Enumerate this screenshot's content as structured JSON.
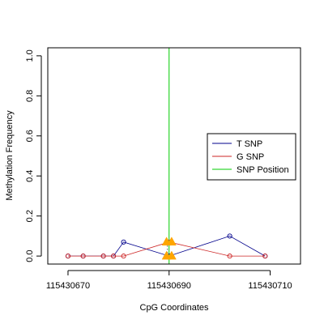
{
  "chart_data": {
    "type": "line",
    "title": "",
    "xlabel": "CpG Coordinates",
    "ylabel": "Methylation Frequency",
    "xlim": [
      115430666,
      115430716
    ],
    "ylim": [
      -0.04,
      1.04
    ],
    "x_ticks": [
      115430670,
      115430690,
      115430710
    ],
    "y_ticks": [
      0.0,
      0.2,
      0.4,
      0.6,
      0.8,
      1.0
    ],
    "x_tick_labels": [
      "115430670",
      "115430690",
      "115430710"
    ],
    "y_tick_labels": [
      "0.0",
      "0.2",
      "0.4",
      "0.6",
      "0.8",
      "1.0"
    ],
    "grid": false,
    "legend_position": "right",
    "series": [
      {
        "name": "T SNP",
        "color": "#00008B",
        "x": [
          115430670,
          115430673,
          115430677,
          115430679,
          115430681,
          115430690,
          115430702,
          115430709
        ],
        "y": [
          0.0,
          0.0,
          0.0,
          0.0,
          0.07,
          0.0,
          0.1,
          0.0
        ]
      },
      {
        "name": "G SNP",
        "color": "#CD2626",
        "x": [
          115430670,
          115430673,
          115430677,
          115430679,
          115430681,
          115430690,
          115430702,
          115430709
        ],
        "y": [
          0.0,
          0.0,
          0.0,
          0.0,
          0.0,
          0.07,
          0.0,
          0.0
        ]
      }
    ],
    "snp_position": {
      "name": "SNP Position",
      "color": "#00CD00",
      "x": 115430690
    },
    "snp_markers": {
      "color": "#FFA500",
      "x": [
        115430689.5,
        115430690.5,
        115430689.5,
        115430690.5
      ],
      "y": [
        0.07,
        0.07,
        0.0,
        0.0
      ]
    }
  }
}
